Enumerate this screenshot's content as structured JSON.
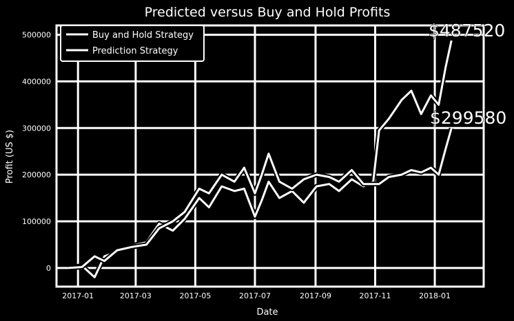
{
  "chart_data": {
    "type": "line",
    "title": "Predicted versus Buy and Hold Profits",
    "xlabel": "Date",
    "ylabel": "Profit  (US $)",
    "x_ticks": [
      "2017-01",
      "2017-03",
      "2017-05",
      "2017-07",
      "2017-09",
      "2017-11",
      "2018-01"
    ],
    "y_ticks": [
      0,
      100000,
      200000,
      300000,
      400000,
      500000
    ],
    "ylim": [
      -40000,
      520000
    ],
    "x_range": [
      "2016-12-10",
      "2018-02-20"
    ],
    "grid": true,
    "legend_position": "top-left",
    "series": [
      {
        "name": "Buy and Hold Strategy",
        "x": [
          "2016-12-22",
          "2017-01-05",
          "2017-01-18",
          "2017-01-28",
          "2017-02-10",
          "2017-02-25",
          "2017-03-12",
          "2017-03-25",
          "2017-04-08",
          "2017-04-20",
          "2017-05-05",
          "2017-05-15",
          "2017-05-28",
          "2017-06-10",
          "2017-06-20",
          "2017-07-01",
          "2017-07-08",
          "2017-07-15",
          "2017-07-26",
          "2017-08-08",
          "2017-08-20",
          "2017-09-02",
          "2017-09-15",
          "2017-09-25",
          "2017-10-08",
          "2017-10-20",
          "2017-10-30",
          "2017-11-05",
          "2017-11-15",
          "2017-11-28",
          "2017-12-08",
          "2017-12-18",
          "2017-12-28",
          "2018-01-05",
          "2018-01-12",
          "2018-01-18"
        ],
        "values": [
          0,
          5000,
          -20000,
          25000,
          35000,
          48000,
          55000,
          95000,
          80000,
          105000,
          150000,
          130000,
          175000,
          165000,
          170000,
          110000,
          145000,
          185000,
          150000,
          165000,
          140000,
          175000,
          180000,
          165000,
          190000,
          175000,
          185000,
          295000,
          320000,
          360000,
          380000,
          330000,
          370000,
          350000,
          430000,
          487520
        ]
      },
      {
        "name": "Prediction Strategy",
        "x": [
          "2016-12-22",
          "2017-01-05",
          "2017-01-18",
          "2017-01-28",
          "2017-02-10",
          "2017-02-25",
          "2017-03-12",
          "2017-03-25",
          "2017-04-08",
          "2017-04-20",
          "2017-05-05",
          "2017-05-15",
          "2017-05-28",
          "2017-06-10",
          "2017-06-20",
          "2017-07-01",
          "2017-07-08",
          "2017-07-15",
          "2017-07-26",
          "2017-08-08",
          "2017-08-20",
          "2017-09-02",
          "2017-09-15",
          "2017-09-25",
          "2017-10-08",
          "2017-10-20",
          "2017-10-30",
          "2017-11-05",
          "2017-11-15",
          "2017-11-28",
          "2017-12-08",
          "2017-12-18",
          "2017-12-28",
          "2018-01-05",
          "2018-01-12",
          "2018-01-18"
        ],
        "values": [
          0,
          2000,
          25000,
          15000,
          38000,
          45000,
          50000,
          85000,
          100000,
          120000,
          170000,
          160000,
          200000,
          185000,
          215000,
          160000,
          200000,
          245000,
          185000,
          170000,
          190000,
          200000,
          195000,
          185000,
          210000,
          180000,
          180000,
          180000,
          195000,
          200000,
          210000,
          205000,
          215000,
          200000,
          255000,
          299580
        ]
      }
    ],
    "annotations": [
      "$487520",
      "$299580"
    ]
  }
}
